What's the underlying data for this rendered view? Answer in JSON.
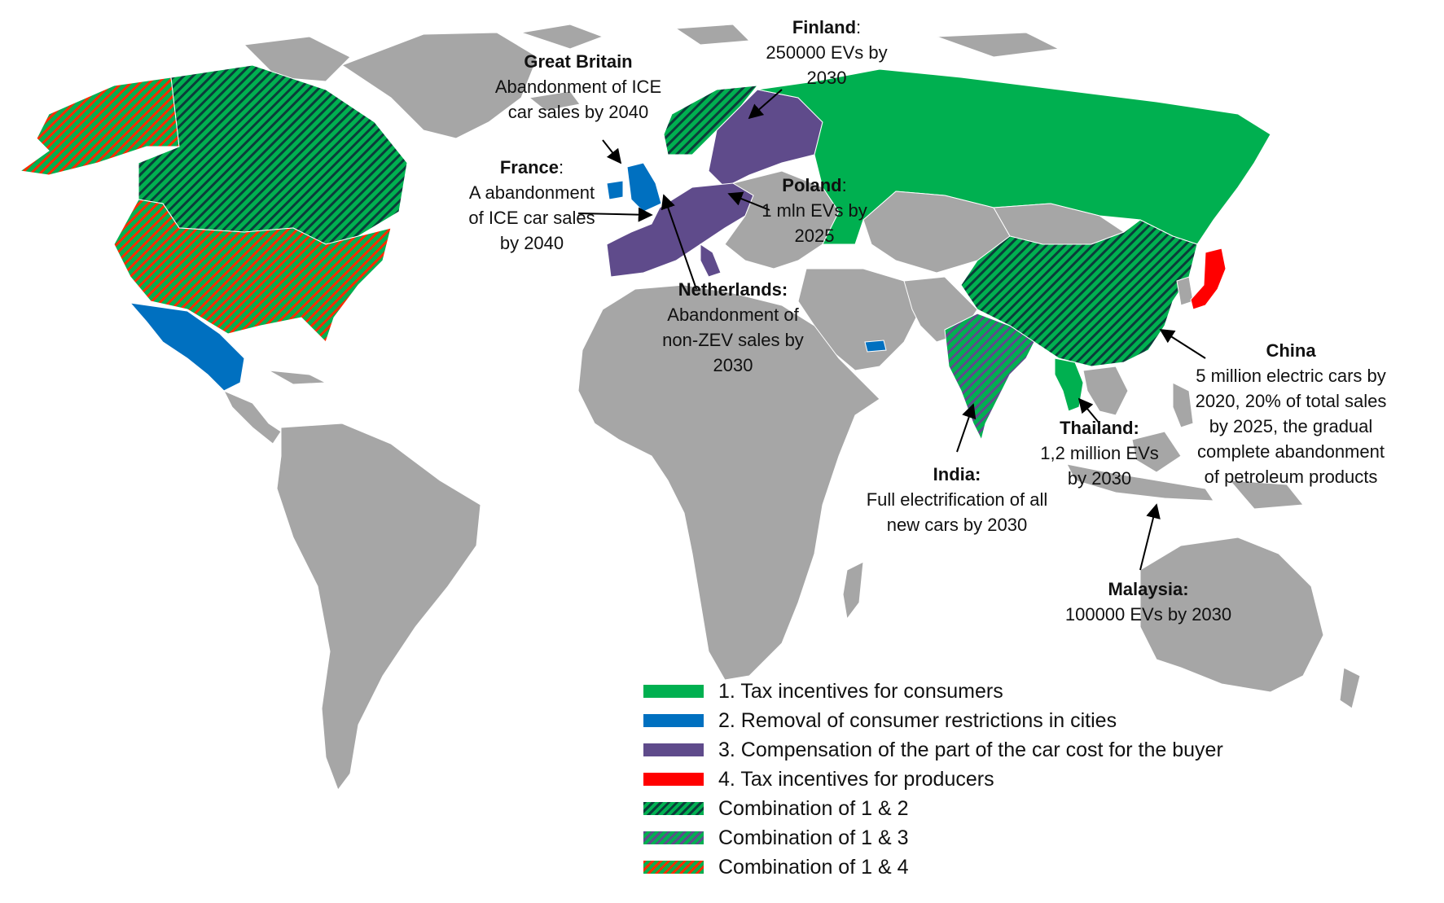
{
  "colors": {
    "ocean": "#ffffff",
    "land": "#a6a6a6",
    "border": "#ffffff",
    "tax_consumers": "#00b050",
    "removal_restrictions": "#0070c0",
    "compensation": "#5f4b8b",
    "tax_producers": "#ff0000",
    "combo_12_stripe": "#0b3d3a",
    "combo_13_stripe": "#5f4b8b",
    "combo_14_stripe": "#ff2a00"
  },
  "annotations": {
    "finland": {
      "title": "Finland",
      "suffix": ":",
      "lines": [
        "250000 EVs by",
        "2030"
      ]
    },
    "great_britain": {
      "title": "Great Britain",
      "lines": [
        "Abandonment of ICE",
        "car sales by 2040"
      ]
    },
    "france": {
      "title": "France",
      "suffix": ":",
      "lines": [
        "A abandonment",
        "of ICE car sales",
        "by 2040"
      ]
    },
    "poland": {
      "title": "Poland",
      "suffix": ":",
      "lines": [
        "1 mln EVs by",
        "2025"
      ]
    },
    "netherlands": {
      "title": "Netherlands:",
      "lines": [
        "Abandonment of",
        "non-ZEV sales by",
        "2030"
      ]
    },
    "china": {
      "title": "China",
      "lines": [
        "5 million electric cars by",
        "2020, 20% of total sales",
        "by 2025, the gradual",
        "complete abandonment",
        "of petroleum products"
      ]
    },
    "thailand": {
      "title": "Thailand:",
      "lines": [
        "1,2 million EVs",
        "by 2030"
      ]
    },
    "india": {
      "title": "India:",
      "lines": [
        "Full electrification of all",
        "new cars by 2030"
      ]
    },
    "malaysia": {
      "title": "Malaysia:",
      "lines": [
        "100000 EVs by 2030"
      ]
    }
  },
  "legend": [
    {
      "label": "1. Tax incentives for consumers",
      "fill": "solid",
      "color": "#00b050"
    },
    {
      "label": "2. Removal of consumer restrictions in cities",
      "fill": "solid",
      "color": "#0070c0"
    },
    {
      "label": "3. Compensation of the part of the car cost for the buyer",
      "fill": "solid",
      "color": "#5f4b8b"
    },
    {
      "label": "4. Tax incentives for producers",
      "fill": "solid",
      "color": "#ff0000"
    },
    {
      "label": "Combination of 1 & 2",
      "fill": "hatch",
      "color": "#00b050",
      "stripe": "#0b3d3a"
    },
    {
      "label": "Combination of 1 & 3",
      "fill": "hatch",
      "color": "#00b050",
      "stripe": "#5f4b8b"
    },
    {
      "label": "Combination of 1 & 4",
      "fill": "hatch",
      "color": "#00b050",
      "stripe": "#ff2a00"
    }
  ]
}
